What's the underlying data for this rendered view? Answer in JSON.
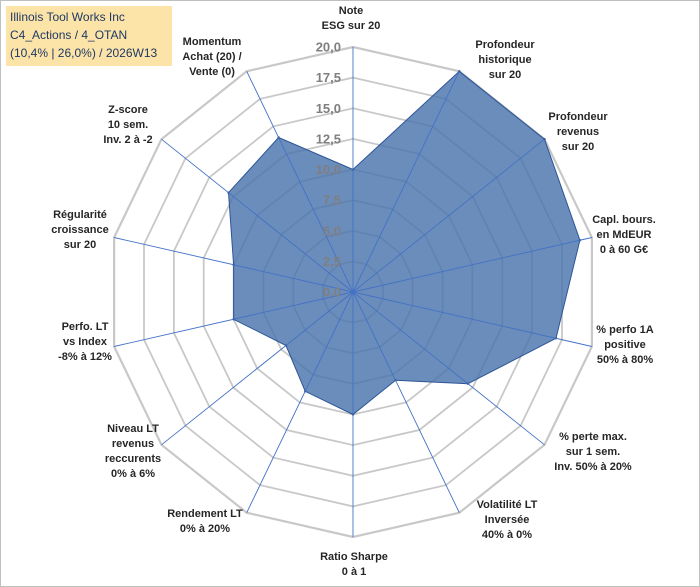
{
  "header": {
    "line1": "Illinois Tool Works Inc",
    "line2": "C4_Actions / 4_OTAN",
    "line3": "(10,4% | 26,0%) / 2026W13"
  },
  "chart_data": {
    "type": "radar",
    "title": "Illinois Tool Works Inc",
    "rmin": 0,
    "rmax": 20,
    "ticks": [
      0,
      2.5,
      5,
      7.5,
      10,
      12.5,
      15,
      17.5,
      20
    ],
    "tick_labels": [
      "0,0",
      "2,5",
      "5,0",
      "7,5",
      "10,0",
      "12,5",
      "15,0",
      "17,5",
      "20,0"
    ],
    "axes": [
      {
        "lines": [
          "Note",
          "ESG sur 20"
        ]
      },
      {
        "lines": [
          "Profondeur",
          "historique",
          "sur 20"
        ]
      },
      {
        "lines": [
          "Profondeur",
          "revenus",
          "sur 20"
        ]
      },
      {
        "lines": [
          "Capl. bours.",
          "en MdEUR",
          "0 à 60 G€"
        ]
      },
      {
        "lines": [
          "% perfo 1A",
          "positive",
          "50% à 80%"
        ]
      },
      {
        "lines": [
          "% perte max.",
          "sur 1 sem.",
          "Inv. 50% à 20%"
        ]
      },
      {
        "lines": [
          "Volatilité LT",
          "Inversée",
          "40% à 0%"
        ]
      },
      {
        "lines": [
          "Ratio Sharpe",
          "0 à 1"
        ]
      },
      {
        "lines": [
          "Rendement LT",
          "0% à 20%"
        ]
      },
      {
        "lines": [
          "Niveau LT",
          "revenus",
          "reccurents",
          "0% à 6%"
        ]
      },
      {
        "lines": [
          "Perfo. LT",
          "vs Index",
          "-8% à 12%"
        ]
      },
      {
        "lines": [
          "Régularité",
          "croissance",
          "sur 20"
        ]
      },
      {
        "lines": [
          "Z-score",
          "10 sem.",
          "Inv. 2 à -2"
        ]
      },
      {
        "lines": [
          "Momentum",
          "Achat (20) /",
          "Vente (0)"
        ]
      }
    ],
    "series": [
      {
        "name": "Illinois Tool Works Inc",
        "values": [
          10,
          20,
          20,
          19,
          17,
          12,
          8,
          10,
          9,
          7,
          10,
          10,
          13,
          14
        ]
      }
    ],
    "colors": {
      "fill": "#4a74ad",
      "stroke": "#2e5597",
      "grid": "#c8c8c8",
      "spoke": "#4472c4"
    }
  }
}
